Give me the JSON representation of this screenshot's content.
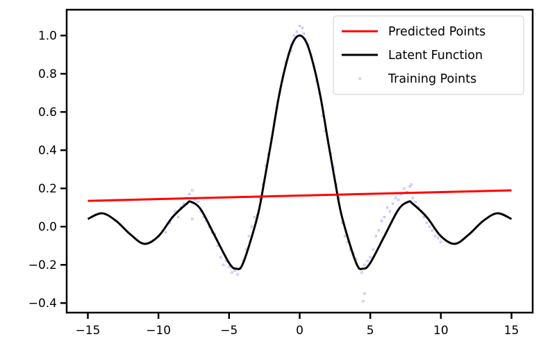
{
  "chart_data": {
    "type": "line",
    "title": "",
    "xlabel": "",
    "ylabel": "",
    "xlim": [
      -16.5,
      16.5
    ],
    "ylim": [
      -0.45,
      1.135
    ],
    "x_ticks": [
      -15,
      -10,
      -5,
      0,
      5,
      10,
      15
    ],
    "x_tick_labels": [
      "−15",
      "−10",
      "−5",
      "0",
      "5",
      "10",
      "15"
    ],
    "y_ticks": [
      -0.4,
      -0.2,
      0.0,
      0.2,
      0.4,
      0.6,
      0.8,
      1.0
    ],
    "y_tick_labels": [
      "−0.4",
      "−0.2",
      "0.0",
      "0.2",
      "0.4",
      "0.6",
      "0.8",
      "1.0"
    ],
    "grid": false,
    "legend_position": "top-right",
    "legend": [
      {
        "label": "Predicted Points",
        "kind": "line",
        "color": "#ff0000"
      },
      {
        "label": "Latent Function",
        "kind": "line",
        "color": "#000000"
      },
      {
        "label": "Training Points",
        "kind": "marker",
        "color": "#0000ff"
      }
    ],
    "series": [
      {
        "name": "Predicted Points",
        "kind": "line",
        "color": "#ff0000",
        "x": [
          -15,
          15
        ],
        "y": [
          0.135,
          0.19
        ]
      },
      {
        "name": "Latent Function",
        "kind": "line",
        "color": "#000000",
        "x": [
          -15,
          -14,
          -13,
          -12,
          -11,
          -10,
          -9,
          -8,
          -7.7,
          -7,
          -6,
          -5,
          -4.5,
          -4,
          -3,
          -2.5,
          -2,
          -1.5,
          -1,
          -0.5,
          0,
          0.5,
          1,
          1.5,
          2,
          2.5,
          3,
          4,
          4.5,
          5,
          6,
          7,
          7.7,
          8,
          9,
          10,
          11,
          12,
          13,
          14,
          15
        ],
        "y": [
          0.04,
          0.07,
          0.03,
          -0.04,
          -0.09,
          -0.05,
          0.05,
          0.12,
          0.13,
          0.09,
          -0.05,
          -0.19,
          -0.22,
          -0.19,
          0.05,
          0.24,
          0.45,
          0.67,
          0.84,
          0.96,
          1.0,
          0.96,
          0.84,
          0.67,
          0.45,
          0.24,
          0.05,
          -0.19,
          -0.22,
          -0.19,
          -0.05,
          0.09,
          0.13,
          0.12,
          0.05,
          -0.05,
          -0.09,
          -0.04,
          0.03,
          0.07,
          0.04
        ]
      },
      {
        "name": "Training Points",
        "kind": "scatter",
        "color": "#0000ff",
        "x": [
          -10.0,
          -9.5,
          -9.2,
          -9.0,
          -8.8,
          -8.6,
          -8.4,
          -8.2,
          -8.0,
          -7.8,
          -7.6,
          -7.4,
          -7.2,
          -7.0,
          -6.8,
          -6.6,
          -6.4,
          -6.2,
          -6.0,
          -5.8,
          -5.6,
          -5.4,
          -5.2,
          -5.0,
          -4.8,
          -4.6,
          -4.4,
          -4.2,
          -4.0,
          -3.8,
          -3.6,
          -3.4,
          -3.2,
          -3.0,
          -2.8,
          -2.6,
          -2.4,
          -2.2,
          -2.0,
          -1.8,
          -1.6,
          -1.4,
          -1.2,
          -1.0,
          -0.8,
          -0.6,
          -0.4,
          -0.2,
          0.0,
          0.2,
          0.4,
          0.6,
          0.8,
          1.0,
          1.2,
          1.4,
          1.6,
          1.8,
          2.0,
          2.2,
          2.4,
          2.6,
          2.8,
          3.0,
          3.2,
          3.4,
          3.6,
          3.8,
          4.0,
          4.2,
          4.4,
          4.6,
          4.8,
          5.0,
          5.2,
          5.4,
          5.6,
          5.8,
          6.0,
          6.2,
          6.4,
          6.6,
          6.8,
          7.0,
          7.2,
          7.4,
          7.6,
          7.8,
          8.0,
          8.2,
          8.4,
          8.6,
          8.8,
          9.0,
          9.2,
          9.4,
          9.6,
          9.8,
          10.0,
          4.6,
          4.5,
          -0.6,
          0.3,
          -7.6,
          7.9
        ],
        "y": [
          -0.05,
          -0.03,
          0.02,
          0.05,
          0.08,
          0.05,
          0.1,
          0.12,
          0.15,
          0.17,
          0.19,
          0.14,
          0.13,
          0.08,
          0.05,
          0.03,
          0.0,
          -0.03,
          -0.04,
          -0.1,
          -0.16,
          -0.2,
          -0.18,
          -0.21,
          -0.24,
          -0.23,
          -0.25,
          -0.22,
          -0.18,
          -0.12,
          -0.05,
          0.0,
          0.05,
          0.06,
          0.15,
          0.22,
          0.32,
          0.38,
          0.46,
          0.55,
          0.62,
          0.7,
          0.78,
          0.86,
          0.9,
          0.95,
          1.0,
          1.02,
          1.05,
          1.04,
          0.98,
          0.95,
          0.9,
          0.84,
          0.76,
          0.7,
          0.58,
          0.5,
          0.46,
          0.38,
          0.31,
          0.22,
          0.15,
          0.02,
          -0.05,
          -0.08,
          -0.12,
          -0.14,
          -0.17,
          -0.22,
          -0.24,
          -0.2,
          -0.18,
          -0.16,
          -0.12,
          -0.05,
          -0.02,
          0.03,
          0.05,
          0.1,
          0.08,
          0.12,
          0.15,
          0.14,
          0.17,
          0.2,
          0.18,
          0.21,
          0.15,
          0.13,
          0.1,
          0.08,
          0.05,
          0.02,
          0.0,
          -0.02,
          -0.05,
          -0.06,
          -0.08,
          -0.35,
          -0.39,
          0.92,
          1.01,
          0.04,
          0.22
        ]
      }
    ]
  }
}
